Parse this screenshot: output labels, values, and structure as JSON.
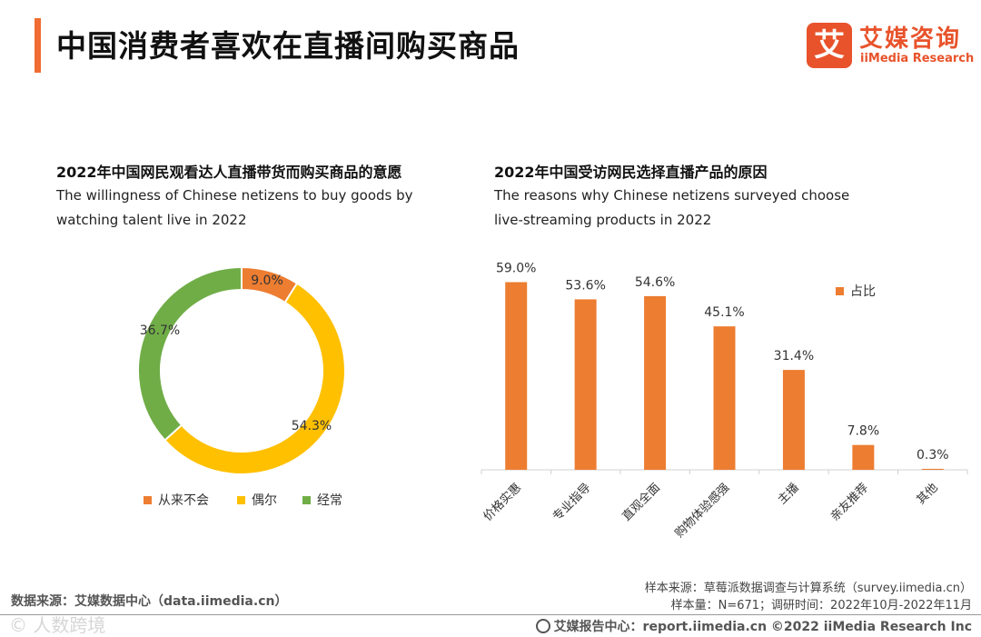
{
  "page_title": "中国消费者喜欢在直播间购买商品",
  "logo": {
    "icon_text": "艾",
    "cn": "艾媒咨询",
    "en": "iiMedia Research"
  },
  "chart_data": [
    {
      "type": "pie",
      "title_cn": "2022年中国网民观看达人直播带货而购买商品的意愿",
      "title_en": "The willingness of Chinese netizens to buy goods by watching talent live in 2022",
      "categories": [
        "从来不会",
        "偶尔",
        "经常"
      ],
      "values": [
        9.0,
        54.3,
        36.7
      ],
      "labels": [
        "9.0%",
        "54.3%",
        "36.7%"
      ],
      "colors": [
        "#ed7d31",
        "#ffc000",
        "#70ad47"
      ],
      "legend": "bottom"
    },
    {
      "type": "bar",
      "title_cn": "2022年中国受访网民选择直播产品的原因",
      "title_en": "The reasons why Chinese netizens surveyed choose live-streaming products in 2022",
      "categories": [
        "价格实惠",
        "专业指导",
        "直观全面",
        "购物体验感强",
        "主播",
        "亲友推荐",
        "其他"
      ],
      "series": [
        {
          "name": "占比",
          "values": [
            59.0,
            53.6,
            54.6,
            45.1,
            31.4,
            7.8,
            0.3
          ],
          "color": "#ed7d31"
        }
      ],
      "labels": [
        "59.0%",
        "53.6%",
        "54.6%",
        "45.1%",
        "31.4%",
        "7.8%",
        "0.3%"
      ],
      "ylim": [
        0,
        70
      ],
      "legend": "top-right"
    }
  ],
  "footer": {
    "source_left": "数据来源：艾媒数据中心（data.iimedia.cn）",
    "sample_source": "样本来源：草莓派数据调查与计算系统（survey.iimedia.cn）",
    "sample_info": "样本量：N=671；调研时间：2022年10月-2022年11月",
    "bottom": "艾媒报告中心：report.iimedia.cn  ©2022  iiMedia Research  Inc",
    "watermark": "©  人数跨境"
  }
}
